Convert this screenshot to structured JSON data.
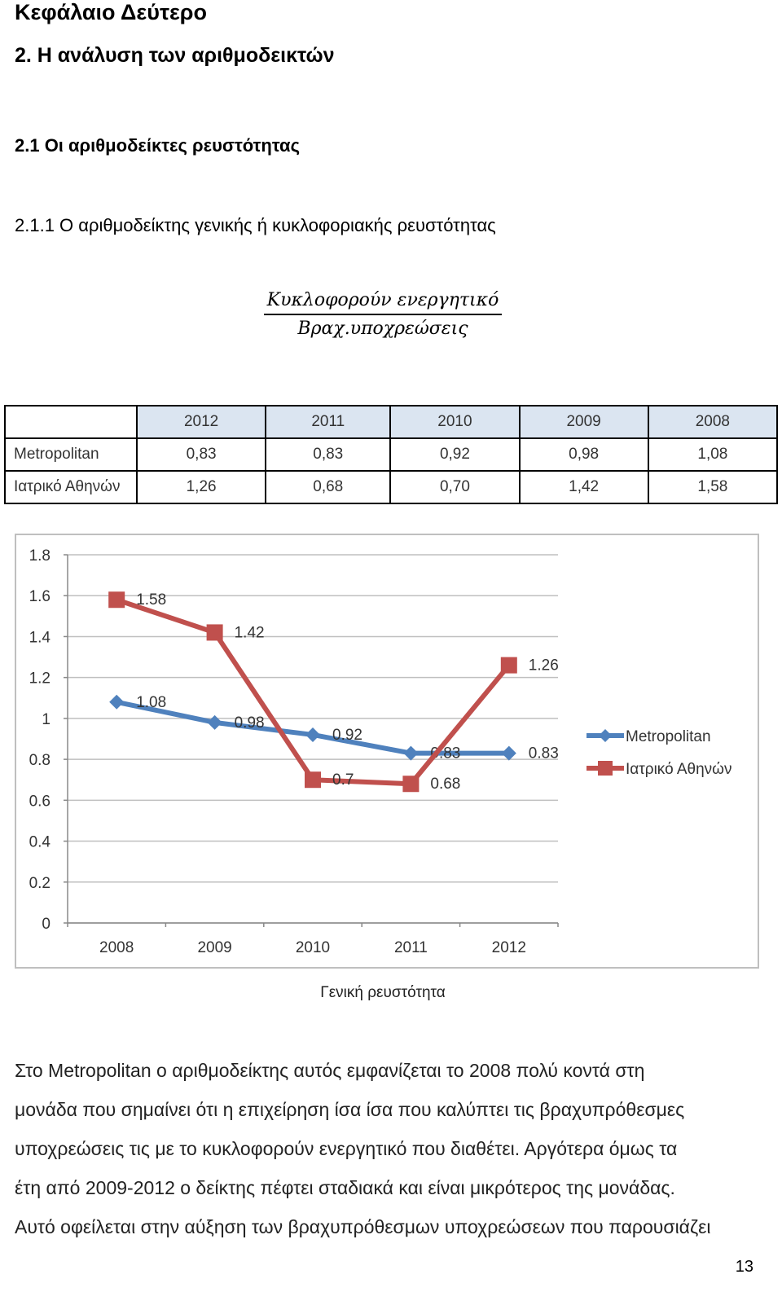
{
  "headings": {
    "chapter": "Κεφάλαιο Δεύτερο",
    "section": "2. Η ανάλυση των αριθμοδεικτών",
    "subsection": "2.1 Οι αριθμοδείκτες ρευστότητας",
    "subsubsection": "2.1.1 Ο αριθμοδείκτης γενικής ή κυκλοφοριακής ρευστότητας"
  },
  "formula": {
    "numerator": "Κυκλοφορούν ενεργητικό",
    "denominator": "Βραχ.υποχρεώσεις"
  },
  "table": {
    "years": [
      "2012",
      "2011",
      "2010",
      "2009",
      "2008"
    ],
    "rows": [
      {
        "label": "Metropolitan",
        "values": [
          "0,83",
          "0,83",
          "0,92",
          "0,98",
          "1,08"
        ]
      },
      {
        "label": "Ιατρικό Αθηνών",
        "values": [
          "1,26",
          "0,68",
          "0,70",
          "1,42",
          "1,58"
        ]
      }
    ]
  },
  "chart_data": {
    "type": "line",
    "title": "Γενική ρευστότητα",
    "x": [
      "2008",
      "2009",
      "2010",
      "2011",
      "2012"
    ],
    "yticks": [
      "0",
      "0.2",
      "0.4",
      "0.6",
      "0.8",
      "1",
      "1.2",
      "1.4",
      "1.6",
      "1.8"
    ],
    "ylim": [
      0,
      1.8
    ],
    "legend_position": "right",
    "series": [
      {
        "name": "Metropolitan",
        "color": "#4f81bd",
        "marker": "diamond",
        "values": [
          1.08,
          0.98,
          0.92,
          0.83,
          0.83
        ],
        "labels": [
          "1.08",
          "0.98",
          "0.92",
          "0.83",
          "0.83"
        ]
      },
      {
        "name": "Ιατρικό Αθηνών",
        "color": "#c0504d",
        "marker": "square",
        "values": [
          1.58,
          1.42,
          0.7,
          0.68,
          1.26
        ],
        "labels": [
          "1.58",
          "1.42",
          "0.7",
          "0.68",
          "1.26"
        ]
      }
    ]
  },
  "paragraph": [
    "Στο Metropolitan ο αριθμοδείκτης αυτός εμφανίζεται το 2008 πολύ κοντά στη",
    "μονάδα που σημαίνει ότι η επιχείρηση ίσα ίσα που καλύπτει τις βραχυπρόθεσμες",
    "υποχρεώσεις τις με το κυκλοφορούν ενεργητικό που διαθέτει. Αργότερα όμως τα",
    "έτη από 2009-2012 ο δείκτης πέφτει σταδιακά και είναι μικρότερος της μονάδας.",
    "Αυτό οφείλεται στην αύξηση των βραχυπρόθεσμων υποχρεώσεων που παρουσιάζει"
  ],
  "page_number": "13"
}
